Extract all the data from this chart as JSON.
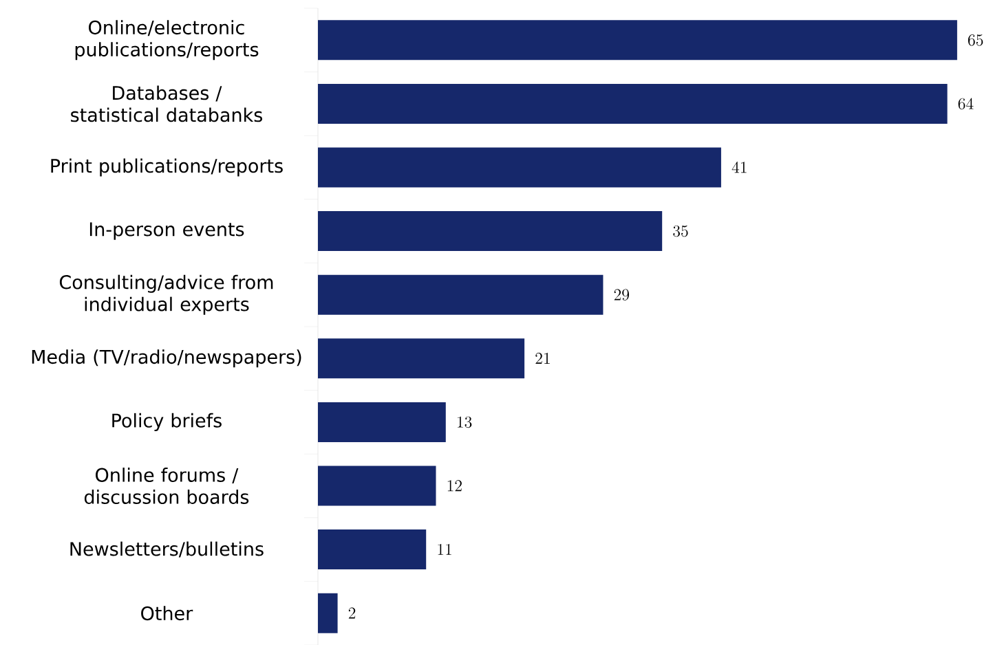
{
  "chart_data": {
    "type": "bar",
    "orientation": "horizontal",
    "categories": [
      "Online/electronic publications/reports",
      "Databases / statistical databanks",
      "Print publications/reports",
      "In-person events",
      "Consulting/advice from individual experts",
      "Media (TV/radio/newspapers)",
      "Policy briefs",
      "Online forums / discussion boards",
      "Newsletters/bulletins",
      "Other"
    ],
    "values": [
      65,
      64,
      41,
      35,
      29,
      21,
      13,
      12,
      11,
      2
    ],
    "color": "#16286b",
    "data_labels": true
  }
}
